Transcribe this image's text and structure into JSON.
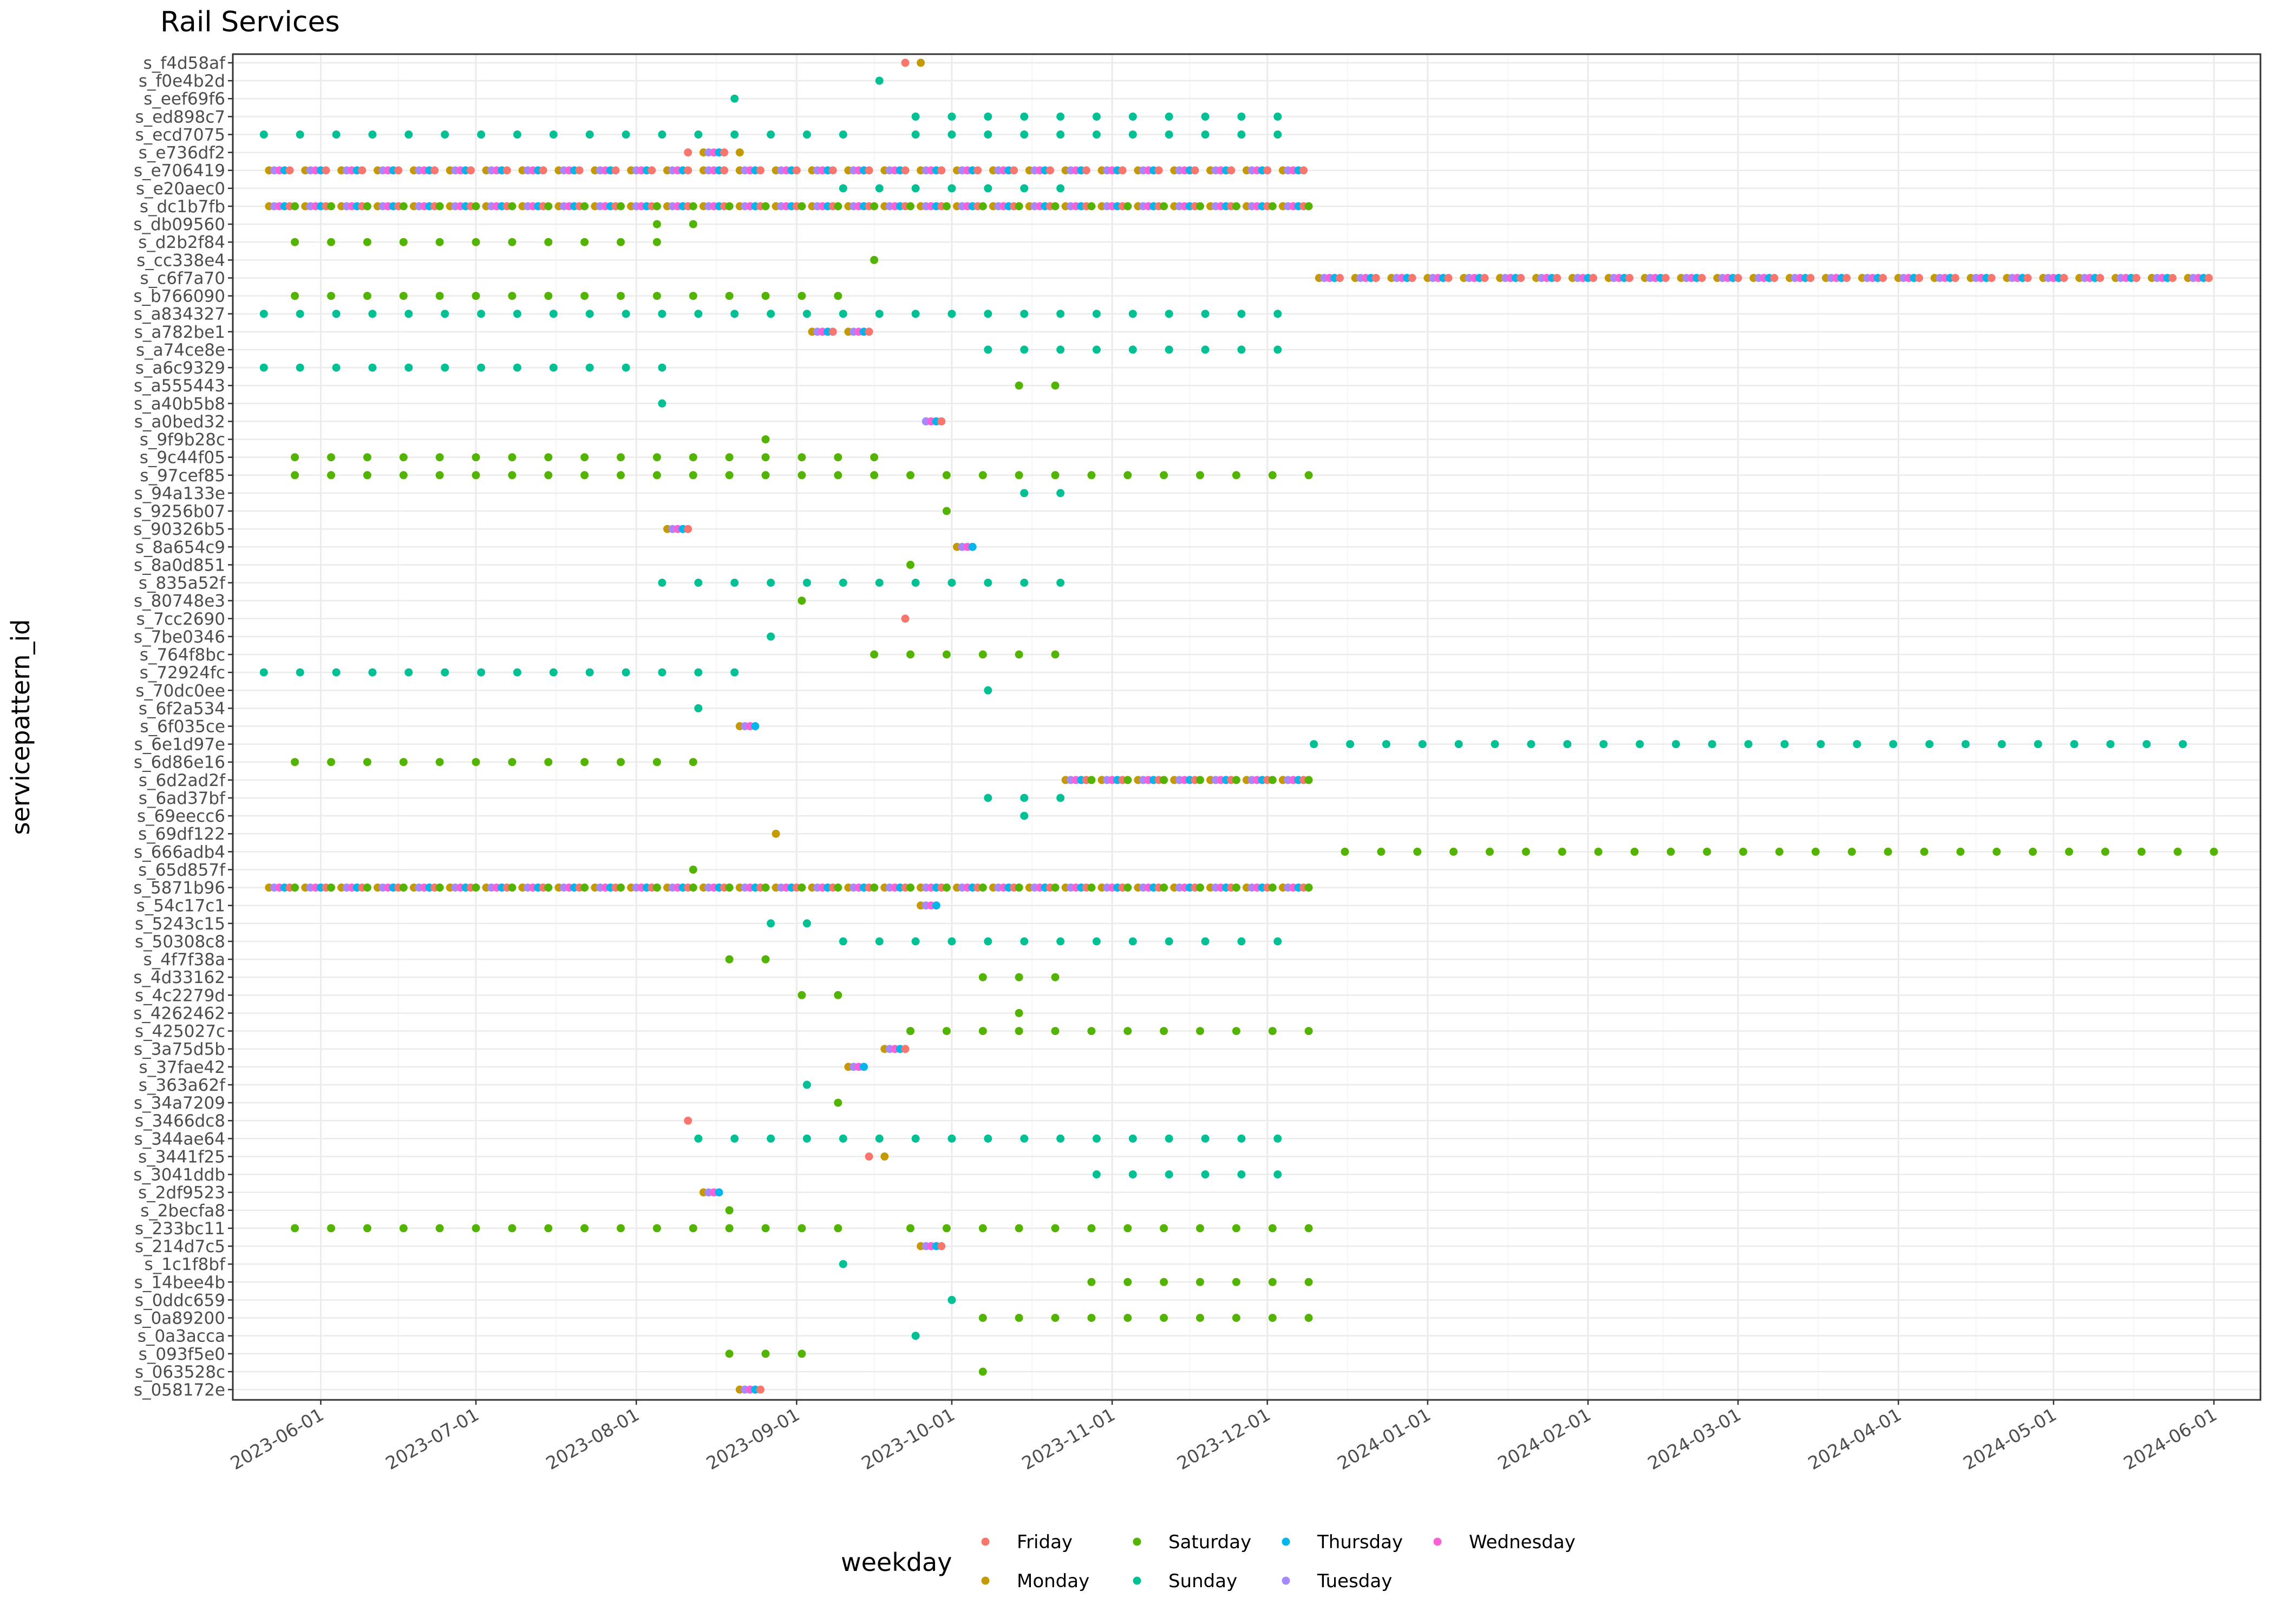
{
  "chart_data": {
    "type": "scatter",
    "title": "Rail Services",
    "xlabel": "",
    "ylabel": "servicepattern_id",
    "xlim": [
      "2023-05-15",
      "2024-06-10"
    ],
    "x_ticks": [
      "2023-06-01",
      "2023-07-01",
      "2023-08-01",
      "2023-09-01",
      "2023-10-01",
      "2023-11-01",
      "2023-12-01",
      "2024-01-01",
      "2024-02-01",
      "2024-03-01",
      "2024-04-01",
      "2024-05-01",
      "2024-06-01"
    ],
    "grid": true,
    "legend": {
      "title": "weekday",
      "position": "bottom",
      "entries": [
        {
          "name": "Friday",
          "color": "#F8766D"
        },
        {
          "name": "Monday",
          "color": "#C49A00"
        },
        {
          "name": "Saturday",
          "color": "#53B400"
        },
        {
          "name": "Sunday",
          "color": "#00C094"
        },
        {
          "name": "Thursday",
          "color": "#00B6EB"
        },
        {
          "name": "Tuesday",
          "color": "#A58AFF"
        },
        {
          "name": "Wednesday",
          "color": "#FB61D7"
        }
      ]
    },
    "categories": [
      "s_f4d58af",
      "s_f0e4b2d",
      "s_eef69f6",
      "s_ed898c7",
      "s_ecd7075",
      "s_e736df2",
      "s_e706419",
      "s_e20aec0",
      "s_dc1b7fb",
      "s_db09560",
      "s_d2b2f84",
      "s_cc338e4",
      "s_c6f7a70",
      "s_b766090",
      "s_a834327",
      "s_a782be1",
      "s_a74ce8e",
      "s_a6c9329",
      "s_a555443",
      "s_a40b5b8",
      "s_a0bed32",
      "s_9f9b28c",
      "s_9c44f05",
      "s_97cef85",
      "s_94a133e",
      "s_9256b07",
      "s_90326b5",
      "s_8a654c9",
      "s_8a0d851",
      "s_835a52f",
      "s_80748e3",
      "s_7cc2690",
      "s_7be0346",
      "s_764f8bc",
      "s_72924fc",
      "s_70dc0ee",
      "s_6f2a534",
      "s_6f035ce",
      "s_6e1d97e",
      "s_6d86e16",
      "s_6d2ad2f",
      "s_6ad37bf",
      "s_69eecc6",
      "s_69df122",
      "s_666adb4",
      "s_65d857f",
      "s_5871b96",
      "s_54c17c1",
      "s_5243c15",
      "s_50308c8",
      "s_4f7f38a",
      "s_4d33162",
      "s_4c2279d",
      "s_4262462",
      "s_425027c",
      "s_3a75d5b",
      "s_37fae42",
      "s_363a62f",
      "s_34a7209",
      "s_3466dc8",
      "s_344ae64",
      "s_3441f25",
      "s_3041ddb",
      "s_2df9523",
      "s_2becfa8",
      "s_233bc11",
      "s_214d7c5",
      "s_1c1f8bf",
      "s_14bee4b",
      "s_0ddc659",
      "s_0a89200",
      "s_0a3acca",
      "s_093f5e0",
      "s_063528c",
      "s_058172e"
    ],
    "series_rows": [
      {
        "id": "s_f4d58af",
        "type": "single",
        "points": [
          [
            "2023-09-22",
            "Friday"
          ],
          [
            "2023-09-25",
            "Monday"
          ]
        ]
      },
      {
        "id": "s_f0e4b2d",
        "type": "weekly",
        "start": "2023-09-17",
        "end": "2023-09-17",
        "weekday": "Sunday"
      },
      {
        "id": "s_eef69f6",
        "type": "weekly",
        "start": "2023-08-20",
        "end": "2023-08-20",
        "weekday": "Sunday"
      },
      {
        "id": "s_ed898c7",
        "type": "weekly",
        "start": "2023-09-24",
        "end": "2023-12-03",
        "weekday": "Sunday"
      },
      {
        "id": "s_ecd7075",
        "type": "weekly",
        "start": "2023-05-21",
        "end": "2023-12-03",
        "weekday": "Sunday",
        "skip": [
          "2023-09-17"
        ]
      },
      {
        "id": "s_e736df2",
        "type": "weekdays",
        "start": "2023-08-11",
        "end": "2023-08-21",
        "days": [
          1,
          2,
          3,
          4,
          5
        ],
        "exclude_range": [
          "2023-08-12",
          "2023-08-13"
        ]
      },
      {
        "id": "s_e706419",
        "type": "weekdays",
        "start": "2023-05-22",
        "end": "2023-12-08",
        "days": [
          1,
          2,
          3,
          4,
          5
        ]
      },
      {
        "id": "s_e20aec0",
        "type": "weekly",
        "start": "2023-09-10",
        "end": "2023-10-22",
        "weekday": "Sunday"
      },
      {
        "id": "s_dc1b7fb",
        "type": "weekdays",
        "start": "2023-05-22",
        "end": "2023-12-09",
        "days": [
          1,
          2,
          3,
          4,
          5,
          6
        ]
      },
      {
        "id": "s_db09560",
        "type": "weekly",
        "start": "2023-08-05",
        "end": "2023-08-12",
        "weekday": "Saturday"
      },
      {
        "id": "s_d2b2f84",
        "type": "weekly",
        "start": "2023-05-27",
        "end": "2023-08-05",
        "weekday": "Saturday"
      },
      {
        "id": "s_cc338e4",
        "type": "weekly",
        "start": "2023-09-16",
        "end": "2023-09-16",
        "weekday": "Saturday"
      },
      {
        "id": "s_c6f7a70",
        "type": "weekdays",
        "start": "2023-12-11",
        "end": "2024-05-31",
        "days": [
          1,
          2,
          3,
          4,
          5
        ]
      },
      {
        "id": "s_b766090",
        "type": "weekly",
        "start": "2023-05-27",
        "end": "2023-09-09",
        "weekday": "Saturday"
      },
      {
        "id": "s_a834327",
        "type": "weekly",
        "start": "2023-05-21",
        "end": "2023-12-03",
        "weekday": "Sunday"
      },
      {
        "id": "s_a782be1",
        "type": "weekdays",
        "start": "2023-09-04",
        "end": "2023-09-15",
        "days": [
          1,
          2,
          3,
          4,
          5
        ]
      },
      {
        "id": "s_a74ce8e",
        "type": "weekly",
        "start": "2023-10-08",
        "end": "2023-12-03",
        "weekday": "Sunday"
      },
      {
        "id": "s_a6c9329",
        "type": "weekly",
        "start": "2023-05-21",
        "end": "2023-08-06",
        "weekday": "Sunday"
      },
      {
        "id": "s_a555443",
        "type": "weekly",
        "start": "2023-10-14",
        "end": "2023-10-21",
        "weekday": "Saturday"
      },
      {
        "id": "s_a40b5b8",
        "type": "weekly",
        "start": "2023-08-06",
        "end": "2023-08-06",
        "weekday": "Sunday"
      },
      {
        "id": "s_a0bed32",
        "type": "weekdays",
        "start": "2023-09-26",
        "end": "2023-09-29",
        "days": [
          2,
          3,
          4,
          5
        ]
      },
      {
        "id": "s_9f9b28c",
        "type": "weekly",
        "start": "2023-08-26",
        "end": "2023-08-26",
        "weekday": "Saturday"
      },
      {
        "id": "s_9c44f05",
        "type": "weekly",
        "start": "2023-05-27",
        "end": "2023-09-16",
        "weekday": "Saturday"
      },
      {
        "id": "s_97cef85",
        "type": "weekly",
        "start": "2023-05-27",
        "end": "2023-12-09",
        "weekday": "Saturday"
      },
      {
        "id": "s_94a133e",
        "type": "weekly",
        "start": "2023-10-15",
        "end": "2023-10-22",
        "weekday": "Sunday"
      },
      {
        "id": "s_9256b07",
        "type": "weekly",
        "start": "2023-09-30",
        "end": "2023-09-30",
        "weekday": "Saturday"
      },
      {
        "id": "s_90326b5",
        "type": "weekdays",
        "start": "2023-08-07",
        "end": "2023-08-11",
        "days": [
          1,
          2,
          3,
          4,
          5
        ]
      },
      {
        "id": "s_8a654c9",
        "type": "weekdays",
        "start": "2023-10-02",
        "end": "2023-10-05",
        "days": [
          1,
          2,
          3,
          4
        ]
      },
      {
        "id": "s_8a0d851",
        "type": "weekly",
        "start": "2023-09-23",
        "end": "2023-09-23",
        "weekday": "Saturday"
      },
      {
        "id": "s_835a52f",
        "type": "weekly",
        "start": "2023-08-06",
        "end": "2023-10-22",
        "weekday": "Sunday"
      },
      {
        "id": "s_80748e3",
        "type": "weekly",
        "start": "2023-09-02",
        "end": "2023-09-02",
        "weekday": "Saturday"
      },
      {
        "id": "s_7cc2690",
        "type": "single",
        "points": [
          [
            "2023-09-22",
            "Friday"
          ]
        ]
      },
      {
        "id": "s_7be0346",
        "type": "weekly",
        "start": "2023-08-27",
        "end": "2023-08-27",
        "weekday": "Sunday"
      },
      {
        "id": "s_764f8bc",
        "type": "weekly",
        "start": "2023-09-16",
        "end": "2023-10-21",
        "weekday": "Saturday"
      },
      {
        "id": "s_72924fc",
        "type": "weekly",
        "start": "2023-05-21",
        "end": "2023-08-20",
        "weekday": "Sunday"
      },
      {
        "id": "s_70dc0ee",
        "type": "weekly",
        "start": "2023-10-08",
        "end": "2023-10-08",
        "weekday": "Sunday"
      },
      {
        "id": "s_6f2a534",
        "type": "weekly",
        "start": "2023-08-13",
        "end": "2023-08-13",
        "weekday": "Sunday"
      },
      {
        "id": "s_6f035ce",
        "type": "weekdays",
        "start": "2023-08-21",
        "end": "2023-08-24",
        "days": [
          1,
          2,
          3,
          4
        ]
      },
      {
        "id": "s_6e1d97e",
        "type": "weekly",
        "start": "2023-12-10",
        "end": "2024-05-26",
        "weekday": "Sunday"
      },
      {
        "id": "s_6d86e16",
        "type": "weekly",
        "start": "2023-05-27",
        "end": "2023-08-12",
        "weekday": "Saturday"
      },
      {
        "id": "s_6d2ad2f",
        "type": "weekdays",
        "start": "2023-10-23",
        "end": "2023-12-09",
        "days": [
          1,
          2,
          3,
          4,
          5,
          6
        ]
      },
      {
        "id": "s_6ad37bf",
        "type": "weekly",
        "start": "2023-10-08",
        "end": "2023-10-22",
        "weekday": "Sunday"
      },
      {
        "id": "s_69eecc6",
        "type": "weekly",
        "start": "2023-10-15",
        "end": "2023-10-15",
        "weekday": "Sunday"
      },
      {
        "id": "s_69df122",
        "type": "single",
        "points": [
          [
            "2023-08-28",
            "Monday"
          ]
        ]
      },
      {
        "id": "s_666adb4",
        "type": "weekly",
        "start": "2023-12-16",
        "end": "2024-06-01",
        "weekday": "Saturday"
      },
      {
        "id": "s_65d857f",
        "type": "weekly",
        "start": "2023-08-12",
        "end": "2023-08-12",
        "weekday": "Saturday"
      },
      {
        "id": "s_5871b96",
        "type": "weekdays",
        "start": "2023-05-22",
        "end": "2023-12-09",
        "days": [
          1,
          2,
          3,
          4,
          5,
          6
        ]
      },
      {
        "id": "s_54c17c1",
        "type": "weekdays",
        "start": "2023-09-25",
        "end": "2023-09-28",
        "days": [
          1,
          2,
          3,
          4
        ]
      },
      {
        "id": "s_5243c15",
        "type": "weekly",
        "start": "2023-08-27",
        "end": "2023-09-03",
        "weekday": "Sunday"
      },
      {
        "id": "s_50308c8",
        "type": "weekly",
        "start": "2023-09-10",
        "end": "2023-12-03",
        "weekday": "Sunday"
      },
      {
        "id": "s_4f7f38a",
        "type": "weekly",
        "start": "2023-08-19",
        "end": "2023-08-26",
        "weekday": "Saturday"
      },
      {
        "id": "s_4d33162",
        "type": "weekly",
        "start": "2023-10-07",
        "end": "2023-10-21",
        "weekday": "Saturday"
      },
      {
        "id": "s_4c2279d",
        "type": "weekly",
        "start": "2023-09-02",
        "end": "2023-09-09",
        "weekday": "Saturday"
      },
      {
        "id": "s_4262462",
        "type": "weekly",
        "start": "2023-10-14",
        "end": "2023-10-14",
        "weekday": "Saturday"
      },
      {
        "id": "s_425027c",
        "type": "weekly",
        "start": "2023-09-23",
        "end": "2023-12-09",
        "weekday": "Saturday"
      },
      {
        "id": "s_3a75d5b",
        "type": "weekdays",
        "start": "2023-09-18",
        "end": "2023-09-22",
        "days": [
          1,
          2,
          3,
          4,
          5
        ]
      },
      {
        "id": "s_37fae42",
        "type": "weekdays",
        "start": "2023-09-11",
        "end": "2023-09-14",
        "days": [
          1,
          2,
          3,
          4
        ]
      },
      {
        "id": "s_363a62f",
        "type": "weekly",
        "start": "2023-09-03",
        "end": "2023-09-03",
        "weekday": "Sunday"
      },
      {
        "id": "s_34a7209",
        "type": "weekly",
        "start": "2023-09-09",
        "end": "2023-09-09",
        "weekday": "Saturday"
      },
      {
        "id": "s_3466dc8",
        "type": "single",
        "points": [
          [
            "2023-08-11",
            "Friday"
          ]
        ]
      },
      {
        "id": "s_344ae64",
        "type": "weekly",
        "start": "2023-08-13",
        "end": "2023-12-03",
        "weekday": "Sunday"
      },
      {
        "id": "s_3441f25",
        "type": "single",
        "points": [
          [
            "2023-09-15",
            "Friday"
          ],
          [
            "2023-09-18",
            "Monday"
          ]
        ]
      },
      {
        "id": "s_3041ddb",
        "type": "weekly",
        "start": "2023-10-29",
        "end": "2023-12-03",
        "weekday": "Sunday"
      },
      {
        "id": "s_2df9523",
        "type": "weekdays",
        "start": "2023-08-14",
        "end": "2023-08-17",
        "days": [
          1,
          2,
          3,
          4
        ]
      },
      {
        "id": "s_2becfa8",
        "type": "weekly",
        "start": "2023-08-19",
        "end": "2023-08-19",
        "weekday": "Saturday"
      },
      {
        "id": "s_233bc11",
        "type": "weekly",
        "start": "2023-05-27",
        "end": "2023-12-09",
        "weekday": "Saturday",
        "skip": [
          "2023-09-16"
        ]
      },
      {
        "id": "s_214d7c5",
        "type": "weekdays",
        "start": "2023-09-25",
        "end": "2023-09-29",
        "days": [
          1,
          2,
          3,
          4,
          5
        ]
      },
      {
        "id": "s_1c1f8bf",
        "type": "weekly",
        "start": "2023-09-10",
        "end": "2023-09-10",
        "weekday": "Sunday"
      },
      {
        "id": "s_14bee4b",
        "type": "weekly",
        "start": "2023-10-28",
        "end": "2023-12-09",
        "weekday": "Saturday"
      },
      {
        "id": "s_0ddc659",
        "type": "weekly",
        "start": "2023-10-01",
        "end": "2023-10-01",
        "weekday": "Sunday"
      },
      {
        "id": "s_0a89200",
        "type": "weekly",
        "start": "2023-10-07",
        "end": "2023-12-09",
        "weekday": "Saturday"
      },
      {
        "id": "s_0a3acca",
        "type": "weekly",
        "start": "2023-09-24",
        "end": "2023-09-24",
        "weekday": "Sunday"
      },
      {
        "id": "s_093f5e0",
        "type": "weekly",
        "start": "2023-08-19",
        "end": "2023-09-02",
        "weekday": "Saturday"
      },
      {
        "id": "s_063528c",
        "type": "weekly",
        "start": "2023-10-07",
        "end": "2023-10-07",
        "weekday": "Saturday"
      },
      {
        "id": "s_058172e",
        "type": "weekdays",
        "start": "2023-08-21",
        "end": "2023-08-25",
        "days": [
          1,
          2,
          3,
          4,
          5
        ]
      }
    ]
  }
}
